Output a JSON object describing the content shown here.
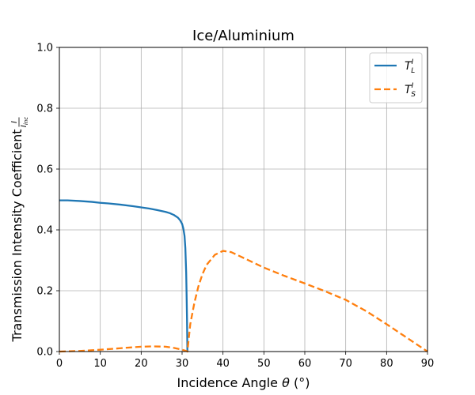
{
  "chart_data": {
    "type": "line",
    "title": "Ice/Aluminium",
    "xlabel": "Incidence Angle θ (°)",
    "ylabel": "Transmission Intensity Coefficient",
    "ylabel_fraction": {
      "numerator": "I",
      "denominator": "I",
      "denominator_sub": "inc"
    },
    "xlim": [
      0,
      90
    ],
    "ylim": [
      0,
      1.0
    ],
    "x_ticks": [
      0,
      10,
      20,
      30,
      40,
      50,
      60,
      70,
      80,
      90
    ],
    "x_tick_labels": [
      "0",
      "10",
      "20",
      "30",
      "40",
      "50",
      "60",
      "70",
      "80",
      "90"
    ],
    "y_ticks": [
      0,
      0.2,
      0.4,
      0.6,
      0.8,
      1.0
    ],
    "y_tick_labels": [
      "0.0",
      "0.2",
      "0.4",
      "0.6",
      "0.8",
      "1.0"
    ],
    "grid": true,
    "legend_position": "top-right",
    "series": [
      {
        "name": "T_L^I",
        "legend": {
          "base": "T",
          "sub": "L",
          "sup": "I"
        },
        "color": "#1f77b4",
        "style": "solid",
        "x": [
          0,
          2,
          5,
          8,
          10,
          12,
          15,
          18,
          20,
          22,
          24,
          26,
          27,
          28,
          29,
          29.5,
          30,
          30.3,
          30.6,
          30.8,
          31,
          31.1,
          31.2,
          31.3
        ],
        "y": [
          0.497,
          0.497,
          0.495,
          0.492,
          0.489,
          0.487,
          0.483,
          0.478,
          0.474,
          0.47,
          0.465,
          0.459,
          0.455,
          0.449,
          0.44,
          0.432,
          0.42,
          0.405,
          0.38,
          0.34,
          0.26,
          0.19,
          0.11,
          0.0
        ]
      },
      {
        "name": "T_S^I",
        "legend": {
          "base": "T",
          "sub": "S",
          "sup": "I"
        },
        "color": "#ff7f0e",
        "style": "dashed",
        "x": [
          0,
          5,
          10,
          15,
          20,
          23,
          26,
          28,
          30,
          31,
          31.3,
          32,
          33,
          34,
          35,
          36,
          38,
          40,
          42,
          45,
          50,
          55,
          60,
          65,
          70,
          75,
          80,
          85,
          90
        ],
        "y": [
          0.0,
          0.002,
          0.006,
          0.011,
          0.016,
          0.017,
          0.016,
          0.012,
          0.006,
          0.002,
          0.0,
          0.09,
          0.16,
          0.215,
          0.255,
          0.285,
          0.318,
          0.331,
          0.327,
          0.308,
          0.276,
          0.249,
          0.224,
          0.198,
          0.17,
          0.133,
          0.09,
          0.045,
          0.0
        ]
      }
    ]
  }
}
